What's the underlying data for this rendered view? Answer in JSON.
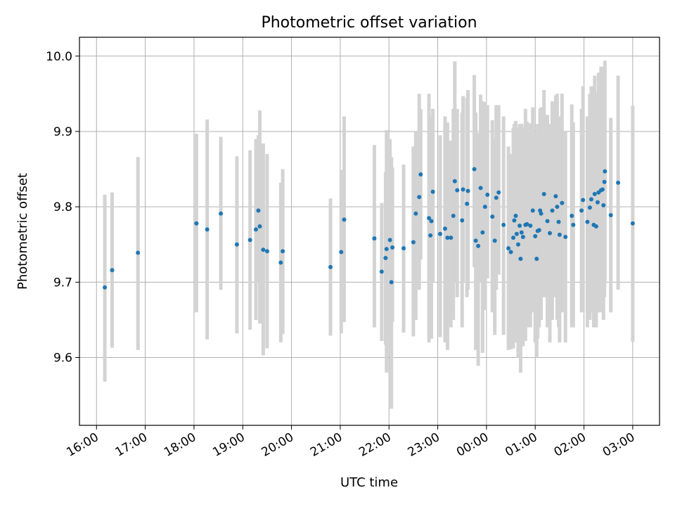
{
  "chart_data": {
    "type": "scatter",
    "title": "Photometric offset variation",
    "xlabel": "UTC time",
    "ylabel": "Photometric offset",
    "ylim": [
      9.51,
      10.025
    ],
    "xlim_hours": [
      15.65,
      27.55
    ],
    "grid": true,
    "colors": {
      "points": "#1f77b4",
      "errorbars": "#d3d3d3"
    },
    "x_ticks": [
      {
        "value": 16,
        "label": "16:00"
      },
      {
        "value": 17,
        "label": "17:00"
      },
      {
        "value": 18,
        "label": "18:00"
      },
      {
        "value": 19,
        "label": "19:00"
      },
      {
        "value": 20,
        "label": "20:00"
      },
      {
        "value": 21,
        "label": "21:00"
      },
      {
        "value": 22,
        "label": "22:00"
      },
      {
        "value": 23,
        "label": "23:00"
      },
      {
        "value": 24,
        "label": "00:00"
      },
      {
        "value": 25,
        "label": "01:00"
      },
      {
        "value": 26,
        "label": "02:00"
      },
      {
        "value": 27,
        "label": "03:00"
      }
    ],
    "y_ticks": [
      {
        "value": 9.6,
        "label": "9.6"
      },
      {
        "value": 9.7,
        "label": "9.7"
      },
      {
        "value": 9.8,
        "label": "9.8"
      },
      {
        "value": 9.9,
        "label": "9.9"
      },
      {
        "value": 10.0,
        "label": "10.0"
      }
    ],
    "points": [
      [
        16.17,
        9.693,
        9.568,
        9.816
      ],
      [
        16.32,
        9.716,
        9.613,
        9.819
      ],
      [
        16.85,
        9.739,
        9.61,
        9.866
      ],
      [
        18.05,
        9.778,
        9.66,
        9.897
      ],
      [
        18.27,
        9.77,
        9.624,
        9.916
      ],
      [
        18.55,
        9.791,
        9.69,
        9.893
      ],
      [
        18.88,
        9.75,
        9.632,
        9.867
      ],
      [
        19.15,
        9.756,
        9.637,
        9.875
      ],
      [
        19.27,
        9.77,
        9.65,
        9.89
      ],
      [
        19.32,
        9.795,
        9.7,
        9.895
      ],
      [
        19.35,
        9.774,
        9.645,
        9.928
      ],
      [
        19.42,
        9.743,
        9.603,
        9.884
      ],
      [
        19.5,
        9.741,
        9.612,
        9.87
      ],
      [
        19.78,
        9.726,
        9.62,
        9.832
      ],
      [
        19.82,
        9.741,
        9.631,
        9.85
      ],
      [
        20.8,
        9.72,
        9.629,
        9.811
      ],
      [
        21.02,
        9.74,
        9.632,
        9.849
      ],
      [
        21.08,
        9.783,
        9.647,
        9.92
      ],
      [
        21.7,
        9.758,
        9.64,
        9.882
      ],
      [
        21.85,
        9.714,
        9.622,
        9.805
      ],
      [
        21.93,
        9.732,
        9.617,
        9.846
      ],
      [
        21.95,
        9.744,
        9.58,
        9.902
      ],
      [
        22.02,
        9.756,
        9.617,
        9.89
      ],
      [
        22.05,
        9.7,
        9.532,
        9.866
      ],
      [
        22.07,
        9.746,
        9.647,
        9.852
      ],
      [
        22.3,
        9.745,
        9.633,
        9.856
      ],
      [
        22.5,
        9.753,
        9.628,
        9.88
      ],
      [
        22.55,
        9.791,
        9.65,
        9.9
      ],
      [
        22.62,
        9.813,
        9.69,
        9.95
      ],
      [
        22.65,
        9.843,
        9.73,
        9.93
      ],
      [
        22.82,
        9.785,
        9.62,
        9.95
      ],
      [
        22.85,
        9.762,
        9.64,
        9.88
      ],
      [
        22.87,
        9.781,
        9.625,
        9.921
      ],
      [
        22.9,
        9.82,
        9.7,
        9.93
      ],
      [
        23.05,
        9.764,
        9.627,
        9.895
      ],
      [
        23.15,
        9.771,
        9.62,
        9.92
      ],
      [
        23.2,
        9.759,
        9.61,
        9.912
      ],
      [
        23.27,
        9.759,
        9.64,
        9.888
      ],
      [
        23.32,
        9.788,
        9.65,
        9.93
      ],
      [
        23.35,
        9.834,
        9.7,
        9.993
      ],
      [
        23.4,
        9.822,
        9.68,
        9.93
      ],
      [
        23.5,
        9.782,
        9.64,
        9.925
      ],
      [
        23.52,
        9.823,
        9.7,
        9.947
      ],
      [
        23.6,
        9.804,
        9.68,
        9.945
      ],
      [
        23.62,
        9.821,
        9.69,
        9.955
      ],
      [
        23.75,
        9.85,
        9.72,
        9.975
      ],
      [
        23.78,
        9.755,
        9.61,
        9.925
      ],
      [
        23.83,
        9.748,
        9.589,
        9.898
      ],
      [
        23.88,
        9.825,
        9.7,
        9.949
      ],
      [
        23.92,
        9.766,
        9.606,
        9.94
      ],
      [
        23.97,
        9.8,
        9.663,
        9.939
      ],
      [
        24.02,
        9.816,
        9.705,
        9.935
      ],
      [
        24.12,
        9.787,
        9.66,
        9.915
      ],
      [
        24.17,
        9.755,
        9.63,
        9.89
      ],
      [
        24.2,
        9.812,
        9.69,
        9.935
      ],
      [
        24.25,
        9.819,
        9.71,
        9.935
      ],
      [
        24.35,
        9.776,
        9.63,
        9.92
      ],
      [
        24.45,
        9.745,
        9.61,
        9.88
      ],
      [
        24.5,
        9.74,
        9.611,
        9.87
      ],
      [
        24.55,
        9.759,
        9.612,
        9.905
      ],
      [
        24.57,
        9.782,
        9.65,
        9.91
      ],
      [
        24.6,
        9.788,
        9.66,
        9.914
      ],
      [
        24.62,
        9.764,
        9.62,
        9.904
      ],
      [
        24.65,
        9.75,
        9.6,
        9.905
      ],
      [
        24.68,
        9.775,
        9.64,
        9.91
      ],
      [
        24.7,
        9.731,
        9.58,
        9.88
      ],
      [
        24.72,
        9.766,
        9.62,
        9.91
      ],
      [
        24.75,
        9.76,
        9.615,
        9.905
      ],
      [
        24.8,
        9.776,
        9.622,
        9.93
      ],
      [
        24.83,
        9.777,
        9.64,
        9.913
      ],
      [
        24.9,
        9.775,
        9.64,
        9.911
      ],
      [
        24.95,
        9.795,
        9.66,
        9.932
      ],
      [
        25.0,
        9.761,
        9.62,
        9.9
      ],
      [
        25.03,
        9.731,
        9.6,
        9.862
      ],
      [
        25.05,
        9.768,
        9.625,
        9.91
      ],
      [
        25.08,
        9.769,
        9.64,
        9.898
      ],
      [
        25.1,
        9.795,
        9.66,
        9.93
      ],
      [
        25.12,
        9.791,
        9.65,
        9.932
      ],
      [
        25.18,
        9.817,
        9.68,
        9.955
      ],
      [
        25.25,
        9.781,
        9.64,
        9.922
      ],
      [
        25.3,
        9.765,
        9.62,
        9.91
      ],
      [
        25.35,
        9.795,
        9.65,
        9.94
      ],
      [
        25.42,
        9.814,
        9.68,
        9.948
      ],
      [
        25.45,
        9.8,
        9.65,
        9.95
      ],
      [
        25.48,
        9.78,
        9.64,
        9.92
      ],
      [
        25.5,
        9.763,
        9.62,
        9.905
      ],
      [
        25.55,
        9.805,
        9.66,
        9.95
      ],
      [
        25.62,
        9.76,
        9.62,
        9.9
      ],
      [
        25.75,
        9.788,
        9.64,
        9.936
      ],
      [
        25.78,
        9.776,
        9.64,
        9.912
      ],
      [
        25.95,
        9.795,
        9.66,
        9.93
      ],
      [
        25.98,
        9.809,
        9.66,
        9.96
      ],
      [
        26.07,
        9.78,
        9.64,
        9.92
      ],
      [
        26.12,
        9.799,
        9.65,
        9.95
      ],
      [
        26.15,
        9.81,
        9.66,
        9.96
      ],
      [
        26.2,
        9.776,
        9.64,
        9.912
      ],
      [
        26.22,
        9.817,
        9.66,
        9.974
      ],
      [
        26.25,
        9.774,
        9.64,
        9.908
      ],
      [
        26.28,
        9.806,
        9.66,
        9.952
      ],
      [
        26.3,
        9.819,
        9.66,
        9.978
      ],
      [
        26.35,
        9.822,
        9.66,
        9.986
      ],
      [
        26.38,
        9.823,
        9.67,
        9.976
      ],
      [
        26.4,
        9.802,
        9.65,
        9.955
      ],
      [
        26.42,
        9.833,
        9.68,
        9.986
      ],
      [
        26.43,
        9.847,
        9.7,
        9.994
      ],
      [
        26.55,
        9.789,
        9.66,
        9.918
      ],
      [
        26.7,
        9.832,
        9.69,
        9.974
      ],
      [
        27.0,
        9.778,
        9.621,
        9.934
      ]
    ]
  }
}
